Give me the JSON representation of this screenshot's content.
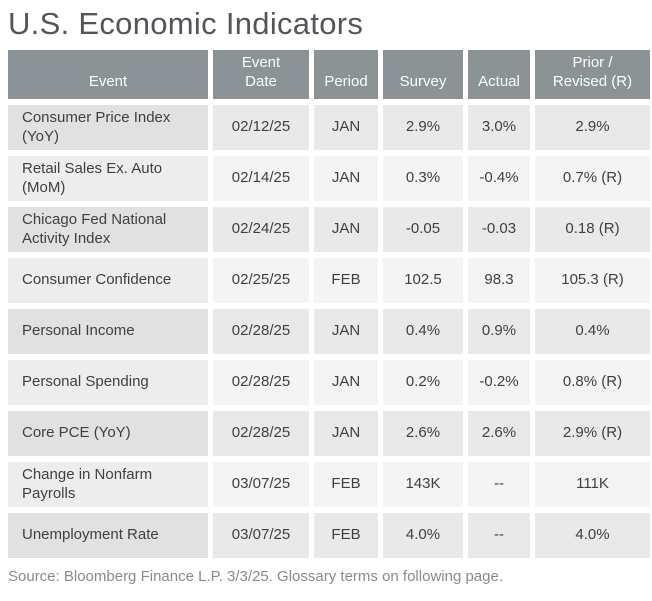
{
  "page": {
    "title": "U.S. Economic Indicators",
    "source_note": "Source: Bloomberg Finance L.P. 3/3/25. Glossary terms on following page."
  },
  "colors": {
    "header_bg": "#8C9397",
    "header_text": "#FDFDFD",
    "row_odd_event": "#E1E1E1",
    "row_odd_value": "#E9E9E9",
    "row_even_event": "#EDEDED",
    "row_even_value": "#F4F4F4",
    "title_text": "#54555A",
    "cell_text": "#3F4040",
    "source_text": "#8A8A8A",
    "page_bg": "#FFFFFF"
  },
  "table": {
    "columns": [
      "Event",
      "Event\nDate",
      "Period",
      "Survey",
      "Actual",
      "Prior /\nRevised (R)"
    ],
    "rows": [
      {
        "event": "Consumer Price Index (YoY)",
        "date": "02/12/25",
        "period": "JAN",
        "survey": "2.9%",
        "actual": "3.0%",
        "prior": "2.9%"
      },
      {
        "event": "Retail Sales Ex. Auto (MoM)",
        "date": "02/14/25",
        "period": "JAN",
        "survey": "0.3%",
        "actual": "-0.4%",
        "prior": "0.7% (R)"
      },
      {
        "event": "Chicago Fed National Activity Index",
        "date": "02/24/25",
        "period": "JAN",
        "survey": "-0.05",
        "actual": "-0.03",
        "prior": "0.18 (R)"
      },
      {
        "event": "Consumer Confidence",
        "date": "02/25/25",
        "period": "FEB",
        "survey": "102.5",
        "actual": "98.3",
        "prior": "105.3 (R)"
      },
      {
        "event": "Personal Income",
        "date": "02/28/25",
        "period": "JAN",
        "survey": "0.4%",
        "actual": "0.9%",
        "prior": "0.4%"
      },
      {
        "event": "Personal Spending",
        "date": "02/28/25",
        "period": "JAN",
        "survey": "0.2%",
        "actual": "-0.2%",
        "prior": "0.8% (R)"
      },
      {
        "event": "Core PCE (YoY)",
        "date": "02/28/25",
        "period": "JAN",
        "survey": "2.6%",
        "actual": "2.6%",
        "prior": "2.9% (R)"
      },
      {
        "event": "Change in Nonfarm Payrolls",
        "date": "03/07/25",
        "period": "FEB",
        "survey": "143K",
        "actual": "--",
        "prior": "111K"
      },
      {
        "event": "Unemployment Rate",
        "date": "03/07/25",
        "period": "FEB",
        "survey": "4.0%",
        "actual": "--",
        "prior": "4.0%"
      }
    ]
  }
}
